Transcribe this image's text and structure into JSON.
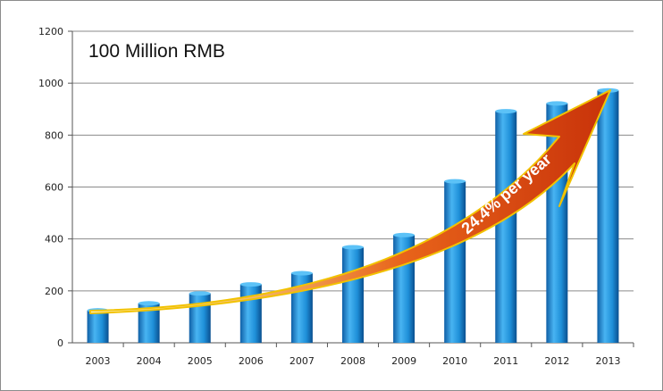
{
  "chart_data": {
    "type": "bar",
    "title": "100 Million RMB",
    "categories": [
      "2003",
      "2004",
      "2005",
      "2006",
      "2007",
      "2008",
      "2009",
      "2010",
      "2011",
      "2012",
      "2013"
    ],
    "values": [
      125,
      152,
      190,
      225,
      268,
      368,
      415,
      622,
      892,
      922,
      972
    ],
    "ylim": [
      0,
      1200
    ],
    "yticks": [
      "0",
      "200",
      "400",
      "600",
      "800",
      "1000",
      "1200"
    ],
    "grid": true,
    "legend": "none",
    "bar_color": "#1e8fd8",
    "annotation": {
      "text": "24.4% per year",
      "arrow_color_start": "#f2b705",
      "arrow_color_end": "#c8320a"
    }
  }
}
